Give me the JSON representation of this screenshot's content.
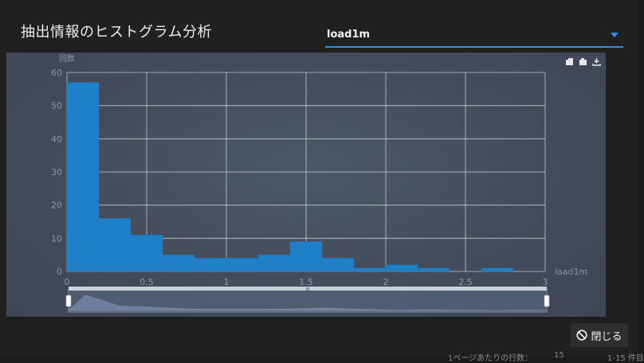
{
  "dialog": {
    "title": "抽出情報のヒストグラム分析",
    "select_value": "load1m",
    "close_label": "閉じる"
  },
  "pager": {
    "rows_label": "1ページあたりの行数：",
    "rows_value": "15",
    "range_label": "1-15 件目"
  },
  "colors": {
    "bar": "#1f80c8",
    "accent": "#2f8fe8"
  },
  "chart_data": {
    "type": "bar",
    "ylabel": "回数",
    "xlabel": "load1m",
    "ylim": [
      0,
      60
    ],
    "xlim": [
      0,
      3
    ],
    "yticks": [
      0,
      10,
      20,
      30,
      40,
      50,
      60
    ],
    "xticks": [
      "0",
      "0.5",
      "1",
      "1.5",
      "2",
      "2.5",
      "3"
    ],
    "bin_width": 0.2,
    "bin_starts": [
      0,
      0.2,
      0.4,
      0.6,
      0.8,
      1.0,
      1.2,
      1.4,
      1.6,
      1.8,
      2.0,
      2.2,
      2.4,
      2.6
    ],
    "values": [
      57,
      16,
      11,
      5,
      4,
      4,
      5,
      9,
      4,
      1,
      2,
      1,
      0,
      1
    ],
    "datazoom_handle": "≡"
  }
}
